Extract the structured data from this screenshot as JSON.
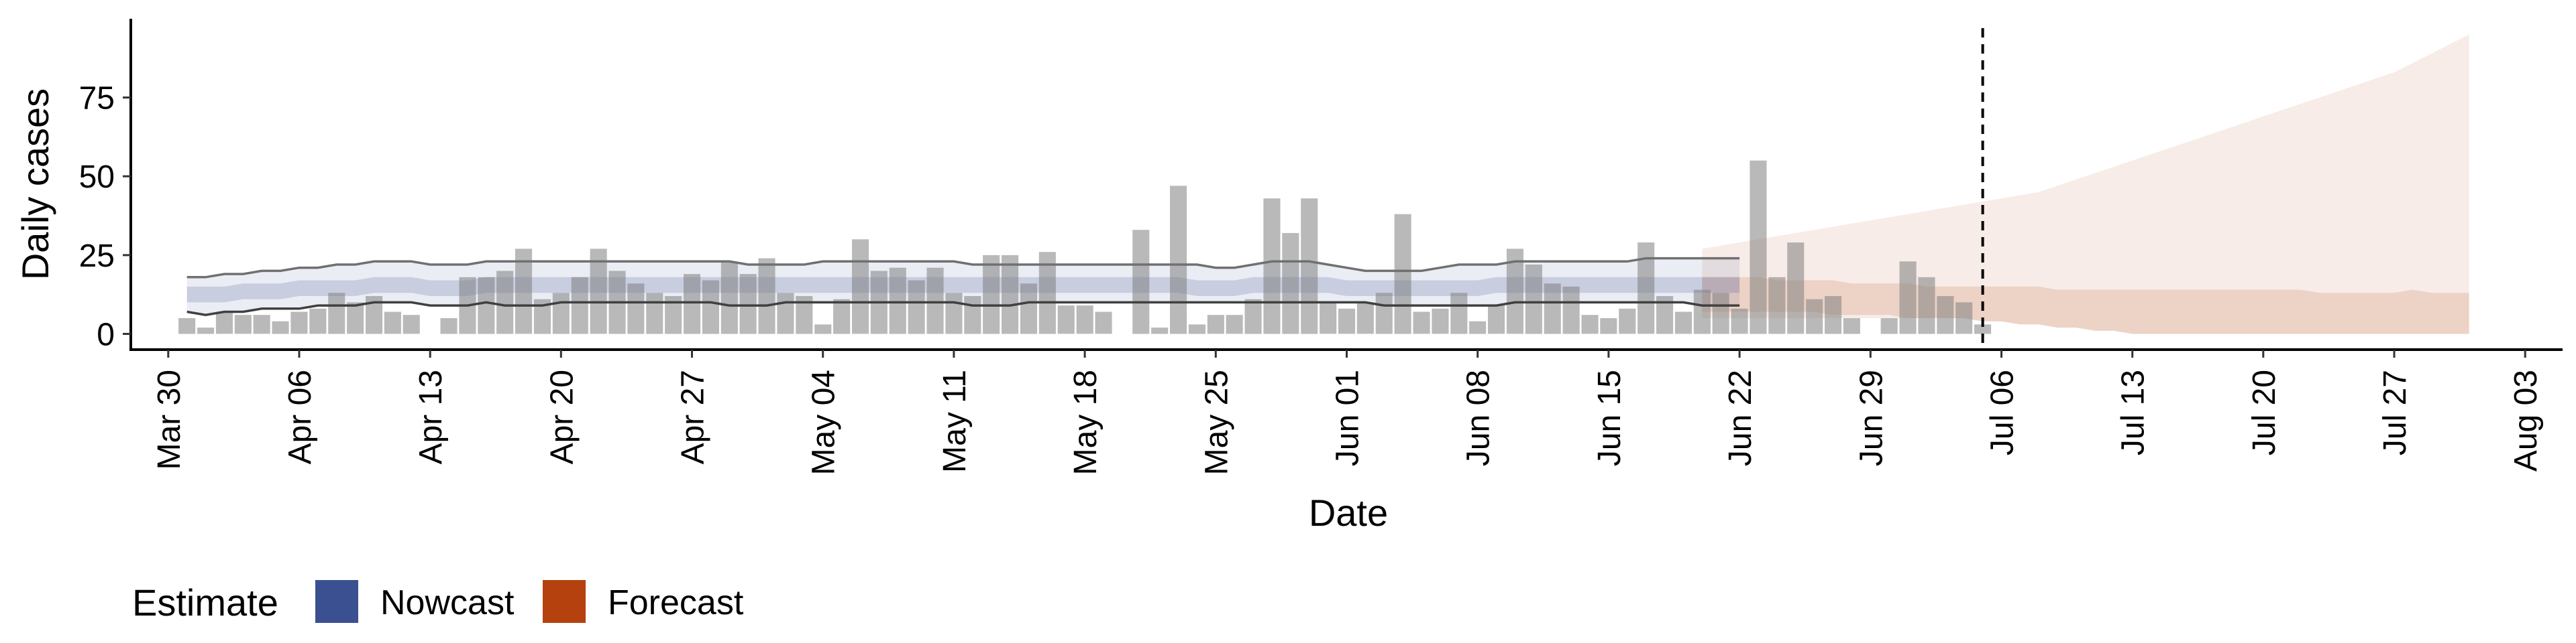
{
  "chart_data": {
    "type": "bar",
    "title": "",
    "xlabel": "Date",
    "ylabel": "Daily cases",
    "x_type": "date",
    "xlim": [
      "2020-03-28",
      "2020-08-05"
    ],
    "ylim": [
      -5,
      100
    ],
    "y_ticks": [
      0,
      25,
      50,
      75
    ],
    "x_ticks": [
      {
        "date": "2020-03-30",
        "label": "Mar 30"
      },
      {
        "date": "2020-04-06",
        "label": "Apr 06"
      },
      {
        "date": "2020-04-13",
        "label": "Apr 13"
      },
      {
        "date": "2020-04-20",
        "label": "Apr 20"
      },
      {
        "date": "2020-04-27",
        "label": "Apr 27"
      },
      {
        "date": "2020-05-04",
        "label": "May 04"
      },
      {
        "date": "2020-05-11",
        "label": "May 11"
      },
      {
        "date": "2020-05-18",
        "label": "May 18"
      },
      {
        "date": "2020-05-25",
        "label": "May 25"
      },
      {
        "date": "2020-06-01",
        "label": "Jun 01"
      },
      {
        "date": "2020-06-08",
        "label": "Jun 08"
      },
      {
        "date": "2020-06-15",
        "label": "Jun 15"
      },
      {
        "date": "2020-06-22",
        "label": "Jun 22"
      },
      {
        "date": "2020-06-29",
        "label": "Jun 29"
      },
      {
        "date": "2020-07-06",
        "label": "Jul 06"
      },
      {
        "date": "2020-07-13",
        "label": "Jul 13"
      },
      {
        "date": "2020-07-20",
        "label": "Jul 20"
      },
      {
        "date": "2020-07-27",
        "label": "Jul 27"
      },
      {
        "date": "2020-08-03",
        "label": "Aug 03"
      }
    ],
    "reference_line_date": "2020-07-05",
    "cases": {
      "start_date": "2020-03-31",
      "values": [
        5,
        2,
        7,
        6,
        6,
        4,
        7,
        8,
        13,
        10,
        12,
        7,
        6,
        0,
        5,
        18,
        18,
        20,
        27,
        11,
        13,
        18,
        27,
        20,
        16,
        13,
        12,
        19,
        17,
        23,
        19,
        24,
        13,
        12,
        3,
        11,
        30,
        20,
        21,
        17,
        21,
        13,
        12,
        25,
        25,
        16,
        26,
        9,
        9,
        7,
        0,
        33,
        2,
        47,
        3,
        6,
        6,
        11,
        43,
        32,
        43,
        10,
        8,
        10,
        13,
        38,
        7,
        8,
        13,
        4,
        9,
        27,
        22,
        16,
        15,
        6,
        5,
        8,
        29,
        12,
        7,
        14,
        13,
        8,
        55,
        18,
        29,
        11,
        12,
        5,
        0,
        5,
        23,
        18,
        12,
        10,
        3
      ]
    },
    "series": [
      {
        "name": "Nowcast",
        "color": "#3a5090",
        "start_date": "2020-03-31",
        "outer_lower": [
          7,
          6,
          7,
          7,
          8,
          8,
          8,
          9,
          9,
          9,
          10,
          10,
          10,
          9,
          9,
          9,
          10,
          9,
          9,
          9,
          10,
          10,
          10,
          10,
          10,
          10,
          10,
          10,
          10,
          9,
          9,
          9,
          10,
          10,
          10,
          10,
          10,
          10,
          10,
          10,
          10,
          10,
          9,
          9,
          9,
          10,
          10,
          10,
          10,
          10,
          10,
          10,
          10,
          10,
          10,
          10,
          10,
          10,
          10,
          10,
          10,
          10,
          10,
          10,
          9,
          9,
          9,
          9,
          9,
          9,
          9,
          10,
          10,
          10,
          10,
          10,
          10,
          10,
          10,
          10,
          10,
          9,
          9,
          9
        ],
        "inner_lower": [
          10,
          10,
          10,
          11,
          11,
          11,
          12,
          12,
          12,
          12,
          13,
          13,
          13,
          12,
          12,
          12,
          13,
          13,
          13,
          13,
          13,
          13,
          13,
          13,
          13,
          13,
          13,
          13,
          13,
          13,
          13,
          13,
          13,
          13,
          13,
          13,
          13,
          13,
          13,
          13,
          13,
          13,
          13,
          13,
          13,
          13,
          13,
          13,
          13,
          13,
          13,
          13,
          13,
          13,
          12,
          12,
          12,
          13,
          13,
          13,
          13,
          13,
          12,
          12,
          12,
          12,
          12,
          12,
          12,
          12,
          13,
          13,
          13,
          13,
          13,
          13,
          13,
          13,
          13,
          13,
          13,
          13,
          13,
          13
        ],
        "inner_upper": [
          15,
          15,
          15,
          16,
          16,
          16,
          17,
          17,
          17,
          17,
          18,
          18,
          18,
          17,
          17,
          17,
          18,
          18,
          18,
          18,
          18,
          18,
          18,
          18,
          18,
          18,
          18,
          18,
          18,
          18,
          18,
          18,
          18,
          18,
          18,
          18,
          18,
          18,
          18,
          18,
          18,
          18,
          18,
          18,
          18,
          18,
          18,
          18,
          18,
          18,
          18,
          18,
          18,
          18,
          17,
          17,
          17,
          18,
          18,
          18,
          18,
          18,
          17,
          17,
          17,
          17,
          17,
          17,
          17,
          17,
          18,
          18,
          18,
          18,
          18,
          18,
          18,
          18,
          18,
          18,
          18,
          18,
          18,
          18
        ],
        "outer_upper": [
          18,
          18,
          19,
          19,
          20,
          20,
          21,
          21,
          22,
          22,
          23,
          23,
          23,
          22,
          22,
          22,
          23,
          23,
          23,
          23,
          23,
          23,
          23,
          23,
          23,
          23,
          23,
          23,
          23,
          23,
          22,
          22,
          22,
          22,
          23,
          23,
          23,
          23,
          23,
          23,
          23,
          23,
          22,
          22,
          22,
          22,
          22,
          22,
          22,
          22,
          22,
          22,
          22,
          22,
          22,
          21,
          21,
          22,
          23,
          23,
          23,
          22,
          21,
          20,
          20,
          20,
          20,
          21,
          22,
          22,
          22,
          23,
          23,
          23,
          23,
          23,
          23,
          23,
          24,
          24,
          24,
          24,
          24,
          24
        ]
      },
      {
        "name": "Forecast",
        "color": "#b5410f",
        "start_date": "2020-06-20",
        "outer_lower": [
          5,
          5,
          5,
          5,
          5,
          5,
          5,
          5,
          5,
          5,
          5,
          5,
          5,
          5,
          5,
          4,
          4,
          3,
          3,
          2,
          2,
          1,
          1,
          0,
          0,
          0,
          0,
          0,
          0,
          0,
          0,
          0,
          0,
          0,
          0,
          0,
          0,
          0,
          0,
          0,
          0,
          0
        ],
        "inner_lower": [
          7,
          7,
          7,
          7,
          7,
          7,
          7,
          6,
          6,
          6,
          6,
          5,
          5,
          5,
          5,
          4,
          4,
          3,
          3,
          2,
          2,
          1,
          1,
          0,
          0,
          0,
          0,
          0,
          0,
          0,
          0,
          0,
          0,
          0,
          0,
          0,
          0,
          0,
          0,
          0,
          0,
          0
        ],
        "inner_upper": [
          18,
          18,
          18,
          18,
          17,
          17,
          17,
          17,
          16,
          16,
          16,
          16,
          15,
          15,
          15,
          15,
          15,
          15,
          15,
          14,
          14,
          14,
          14,
          14,
          14,
          14,
          14,
          14,
          14,
          14,
          14,
          14,
          14,
          13,
          13,
          13,
          13,
          13,
          14,
          13,
          13,
          13
        ],
        "outer_upper": [
          27,
          28,
          29,
          30,
          31,
          32,
          33,
          34,
          35,
          36,
          37,
          38,
          39,
          40,
          41,
          42,
          43,
          44,
          45,
          47,
          49,
          51,
          53,
          55,
          57,
          59,
          61,
          63,
          65,
          67,
          69,
          71,
          73,
          75,
          77,
          79,
          81,
          83,
          86,
          89,
          92,
          95
        ]
      }
    ],
    "legend": {
      "title": "Estimate",
      "position": "bottom-left",
      "items": [
        {
          "label": "Nowcast",
          "color": "#3a5090"
        },
        {
          "label": "Forecast",
          "color": "#b5410f"
        }
      ]
    },
    "grid": false
  }
}
